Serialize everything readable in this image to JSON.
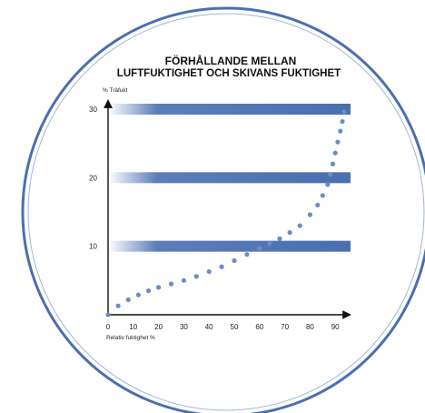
{
  "colors": {
    "band": "#4a6fb0",
    "dots": "#6d8cc6",
    "circle_outer": "#4a6fb0",
    "circle_inner": "#9fb4db",
    "axis": "#111111"
  },
  "chart_data": {
    "type": "scatter",
    "title_line1": "FÖRHÅLLANDE MELLAN",
    "title_line2": "LUFTFUKTIGHET OCH SKIVANS FUKTIGHET",
    "xlabel": "Relativ fuktighet %",
    "ylabel": "% Träfukt",
    "xlim": [
      0,
      95
    ],
    "ylim": [
      0,
      31
    ],
    "x_ticks": [
      "0",
      "10",
      "20",
      "30",
      "40",
      "50",
      "60",
      "70",
      "80",
      "90"
    ],
    "y_ticks": [
      "10",
      "20",
      "30"
    ],
    "grid": false,
    "reference_bands": [
      10,
      20,
      30
    ],
    "series": [
      {
        "points": [
          [
            0,
            0
          ],
          [
            4,
            1.3
          ],
          [
            8,
            2.2
          ],
          [
            12,
            2.9
          ],
          [
            16,
            3.5
          ],
          [
            20,
            4.0
          ],
          [
            25,
            4.5
          ],
          [
            30,
            5.0
          ],
          [
            35,
            5.6
          ],
          [
            40,
            6.3
          ],
          [
            45,
            7.0
          ],
          [
            50,
            7.9
          ],
          [
            55,
            8.8
          ],
          [
            60,
            9.7
          ],
          [
            64,
            10.4
          ],
          [
            68,
            11.1
          ],
          [
            72,
            12.0
          ],
          [
            76,
            13.0
          ],
          [
            80,
            14.6
          ],
          [
            83,
            16.0
          ],
          [
            85,
            17.4
          ],
          [
            87,
            19.0
          ],
          [
            88,
            20.5
          ],
          [
            89,
            22.0
          ],
          [
            90,
            23.6
          ],
          [
            91,
            25.2
          ],
          [
            92,
            26.8
          ],
          [
            92.8,
            28.2
          ],
          [
            93.5,
            29.6
          ]
        ]
      }
    ]
  }
}
